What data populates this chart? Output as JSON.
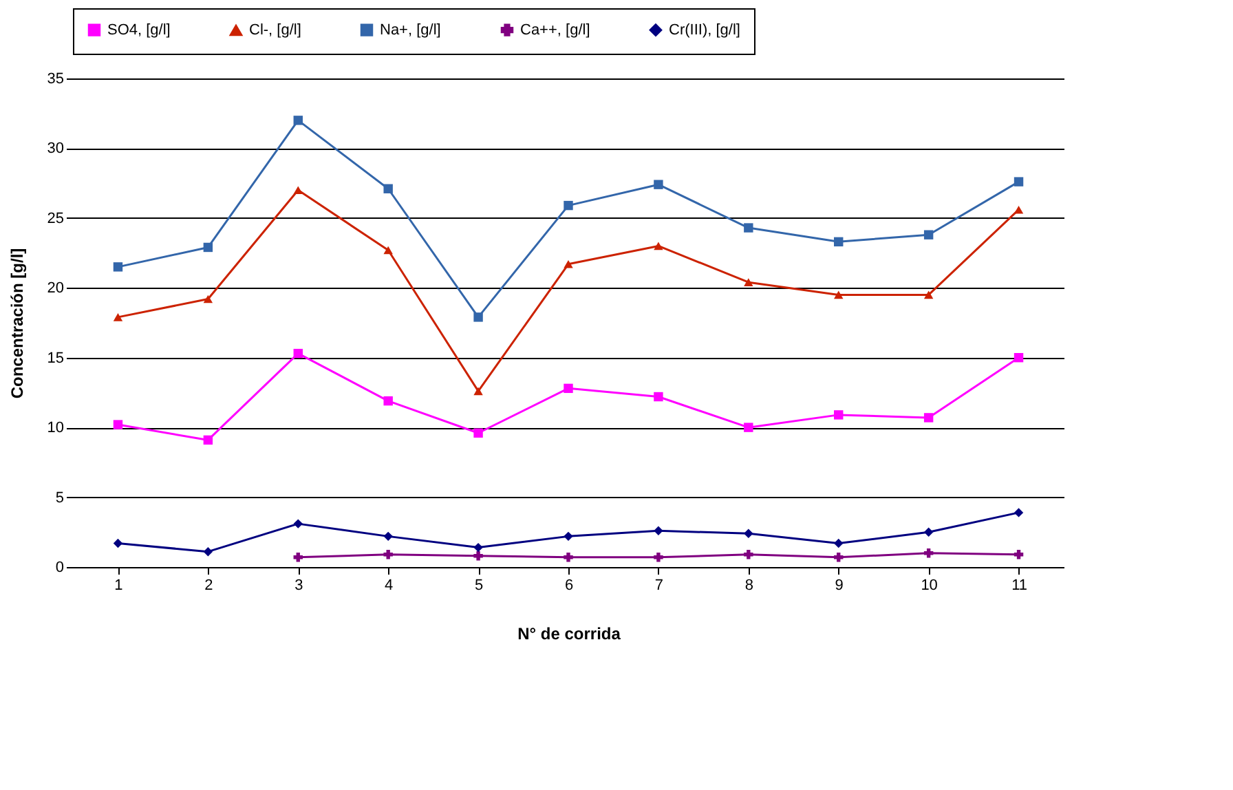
{
  "chart_data": {
    "type": "line",
    "xlabel": "N° de corrida",
    "ylabel": "Concentración [g/l]",
    "categories": [
      "1",
      "2",
      "3",
      "4",
      "5",
      "6",
      "7",
      "8",
      "9",
      "10",
      "11"
    ],
    "series": [
      {
        "name": "SO4, [g/l]",
        "color": "#ff00ff",
        "marker": "square",
        "values": [
          10.2,
          9.1,
          15.3,
          11.9,
          9.6,
          12.8,
          12.2,
          10.0,
          10.9,
          10.7,
          15.0
        ]
      },
      {
        "name": "Cl-, [g/l]",
        "color": "#cc2200",
        "marker": "triangle",
        "values": [
          17.9,
          19.2,
          27.0,
          22.7,
          12.6,
          21.7,
          23.0,
          20.4,
          19.5,
          19.5,
          25.6
        ]
      },
      {
        "name": "Na+, [g/l]",
        "color": "#3366aa",
        "marker": "square",
        "values": [
          21.5,
          22.9,
          32.0,
          27.1,
          17.9,
          25.9,
          27.4,
          24.3,
          23.3,
          23.8,
          27.6
        ]
      },
      {
        "name": "Ca++, [g/l]",
        "color": "#800080",
        "marker": "cross",
        "values": [
          null,
          null,
          0.7,
          0.9,
          0.8,
          0.7,
          0.7,
          0.9,
          0.7,
          1.0,
          0.9
        ]
      },
      {
        "name": "Cr(III), [g/l]",
        "color": "#000080",
        "marker": "diamond",
        "values": [
          1.7,
          1.1,
          3.1,
          2.2,
          1.4,
          2.2,
          2.6,
          2.4,
          1.7,
          2.5,
          3.9
        ]
      }
    ],
    "ylim": [
      0,
      35
    ],
    "yticks": [
      0,
      5,
      10,
      15,
      20,
      25,
      30,
      35
    ],
    "grid": "y",
    "legend": "top"
  }
}
